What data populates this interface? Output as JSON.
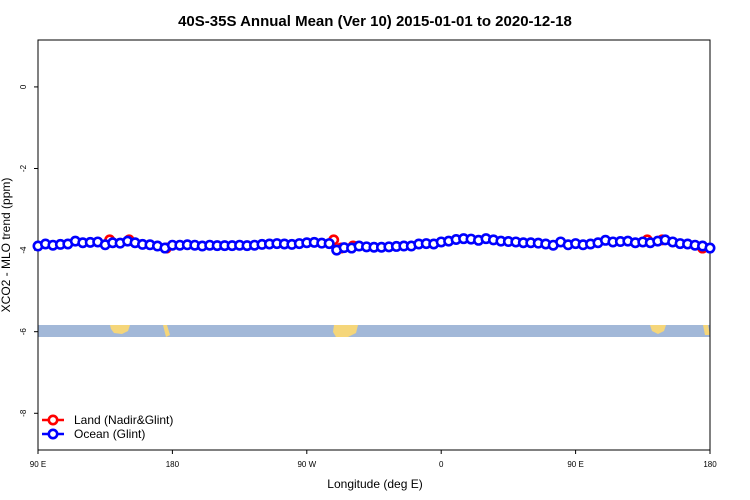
{
  "chart_data": {
    "type": "scatter",
    "title": "40S-35S Annual Mean (Ver 10)   2015-01-01 to 2020-12-18",
    "x_label": "Longitude (deg E)",
    "y_label": "XCO2 - MLO trend (ppm)",
    "xlim": [
      90,
      540
    ],
    "ylim": [
      -8.9,
      1.15
    ],
    "xticks": [
      {
        "value": 90,
        "label": "90 E"
      },
      {
        "value": 180,
        "label": "180"
      },
      {
        "value": 270,
        "label": "90 W"
      },
      {
        "value": 360,
        "label": "0"
      },
      {
        "value": 450,
        "label": "90 E"
      },
      {
        "value": 540,
        "label": "180"
      }
    ],
    "yticks": [
      0,
      -2,
      -4,
      -6,
      -8
    ],
    "legend": "bottomleft",
    "series": [
      {
        "name": "Land (Nadir&Glint)",
        "color": "#ff0000",
        "x": [
          138,
          151,
          176,
          288,
          293,
          301,
          498,
          508,
          535
        ],
        "values": [
          -3.75,
          -3.75,
          -3.95,
          -3.75,
          -3.95,
          -3.9,
          -3.75,
          -3.75,
          -3.95
        ]
      },
      {
        "name": "Ocean (Glint)",
        "color": "#0000ff",
        "x": [
          90,
          95,
          100,
          105,
          110,
          115,
          120,
          125,
          130,
          135,
          140,
          145,
          150,
          155,
          160,
          165,
          170,
          175,
          180,
          185,
          190,
          195,
          200,
          205,
          210,
          215,
          220,
          225,
          230,
          235,
          240,
          245,
          250,
          255,
          260,
          265,
          270,
          275,
          280,
          285,
          290,
          295,
          300,
          305,
          310,
          315,
          320,
          325,
          330,
          335,
          340,
          345,
          350,
          355,
          360,
          365,
          370,
          375,
          380,
          385,
          390,
          395,
          400,
          405,
          410,
          415,
          420,
          425,
          430,
          435,
          440,
          445,
          450,
          455,
          460,
          465,
          470,
          475,
          480,
          485,
          490,
          495,
          500,
          505,
          510,
          515,
          520,
          525,
          530,
          535,
          540
        ],
        "values": [
          -3.9,
          -3.85,
          -3.88,
          -3.86,
          -3.85,
          -3.78,
          -3.82,
          -3.81,
          -3.8,
          -3.87,
          -3.82,
          -3.83,
          -3.78,
          -3.82,
          -3.86,
          -3.87,
          -3.9,
          -3.95,
          -3.88,
          -3.88,
          -3.87,
          -3.88,
          -3.9,
          -3.88,
          -3.89,
          -3.89,
          -3.89,
          -3.88,
          -3.89,
          -3.88,
          -3.86,
          -3.85,
          -3.84,
          -3.85,
          -3.86,
          -3.84,
          -3.82,
          -3.81,
          -3.83,
          -3.84,
          -4.0,
          -3.94,
          -3.95,
          -3.9,
          -3.92,
          -3.93,
          -3.93,
          -3.92,
          -3.91,
          -3.9,
          -3.9,
          -3.85,
          -3.84,
          -3.85,
          -3.8,
          -3.78,
          -3.74,
          -3.72,
          -3.73,
          -3.76,
          -3.72,
          -3.75,
          -3.78,
          -3.79,
          -3.8,
          -3.82,
          -3.82,
          -3.83,
          -3.85,
          -3.88,
          -3.8,
          -3.87,
          -3.84,
          -3.87,
          -3.85,
          -3.82,
          -3.76,
          -3.8,
          -3.79,
          -3.78,
          -3.82,
          -3.8,
          -3.82,
          -3.78,
          -3.75,
          -3.8,
          -3.84,
          -3.85,
          -3.88,
          -3.9,
          -3.95
        ]
      }
    ]
  }
}
